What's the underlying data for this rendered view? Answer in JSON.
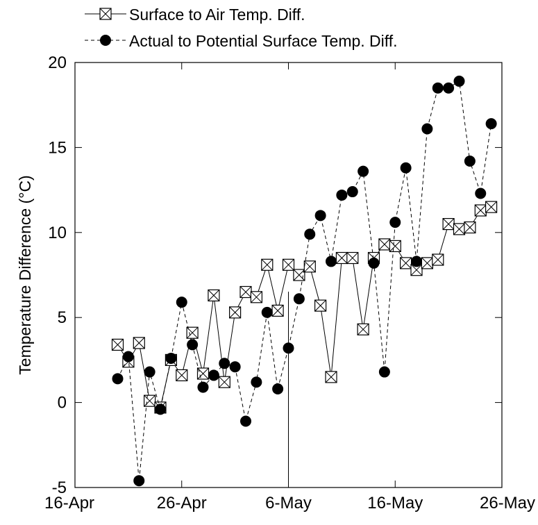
{
  "chart_data": {
    "type": "line",
    "title": "",
    "xlabel": "",
    "ylabel": "Temperature Difference (°C)",
    "x_ticks": [
      "16-Apr",
      "26-Apr",
      "6-May",
      "16-May",
      "26-May"
    ],
    "y_ticks": [
      "-5",
      "0",
      "5",
      "10",
      "15",
      "20"
    ],
    "ylim": [
      -5,
      20
    ],
    "xlim": [
      "16-Apr",
      "26-May"
    ],
    "grid": false,
    "legend_position": "top-left",
    "series": [
      {
        "name": "Surface to Air Temp. Diff.",
        "marker": "square-x",
        "line_style": "solid",
        "x": [
          "20-Apr",
          "21-Apr",
          "22-Apr",
          "23-Apr",
          "24-Apr",
          "25-Apr",
          "26-Apr",
          "27-Apr",
          "28-Apr",
          "29-Apr",
          "30-Apr",
          "1-May",
          "2-May",
          "3-May",
          "4-May",
          "5-May",
          "6-May",
          "7-May",
          "8-May",
          "9-May",
          "10-May",
          "11-May",
          "12-May",
          "13-May",
          "14-May",
          "15-May",
          "16-May",
          "17-May",
          "18-May",
          "19-May",
          "20-May",
          "21-May",
          "22-May",
          "23-May",
          "24-May",
          "25-May",
          "26-May"
        ],
        "y": [
          3.4,
          2.4,
          3.5,
          0.1,
          -0.3,
          2.5,
          1.6,
          4.1,
          1.7,
          6.3,
          1.2,
          5.3,
          6.5,
          6.2,
          8.1,
          5.4,
          8.1,
          7.5,
          8.0,
          5.7,
          1.5,
          8.5,
          8.5,
          4.3,
          8.5,
          9.3,
          9.2,
          8.2,
          7.8,
          8.2,
          8.4,
          10.5,
          10.2,
          10.3,
          11.3,
          11.5,
          null
        ]
      },
      {
        "name": "Actual to Potential Surface Temp. Diff.",
        "marker": "circle",
        "line_style": "dashed",
        "x": [
          "20-Apr",
          "21-Apr",
          "22-Apr",
          "23-Apr",
          "24-Apr",
          "25-Apr",
          "26-Apr",
          "27-Apr",
          "28-Apr",
          "29-Apr",
          "30-Apr",
          "1-May",
          "2-May",
          "3-May",
          "4-May",
          "5-May",
          "6-May",
          "7-May",
          "8-May",
          "9-May",
          "10-May",
          "11-May",
          "12-May",
          "13-May",
          "14-May",
          "15-May",
          "16-May",
          "17-May",
          "18-May",
          "19-May",
          "20-May",
          "21-May",
          "22-May",
          "23-May",
          "24-May",
          "25-May",
          "26-May"
        ],
        "y": [
          1.4,
          2.7,
          -4.6,
          1.8,
          -0.4,
          2.6,
          5.9,
          3.4,
          0.9,
          1.6,
          2.3,
          2.1,
          -1.1,
          1.2,
          5.3,
          0.8,
          3.2,
          6.1,
          9.9,
          11.0,
          8.3,
          12.2,
          12.4,
          13.6,
          8.2,
          1.8,
          10.6,
          13.8,
          8.3,
          16.1,
          18.5,
          18.5,
          18.9,
          14.2,
          12.3,
          16.4,
          null
        ]
      }
    ]
  }
}
